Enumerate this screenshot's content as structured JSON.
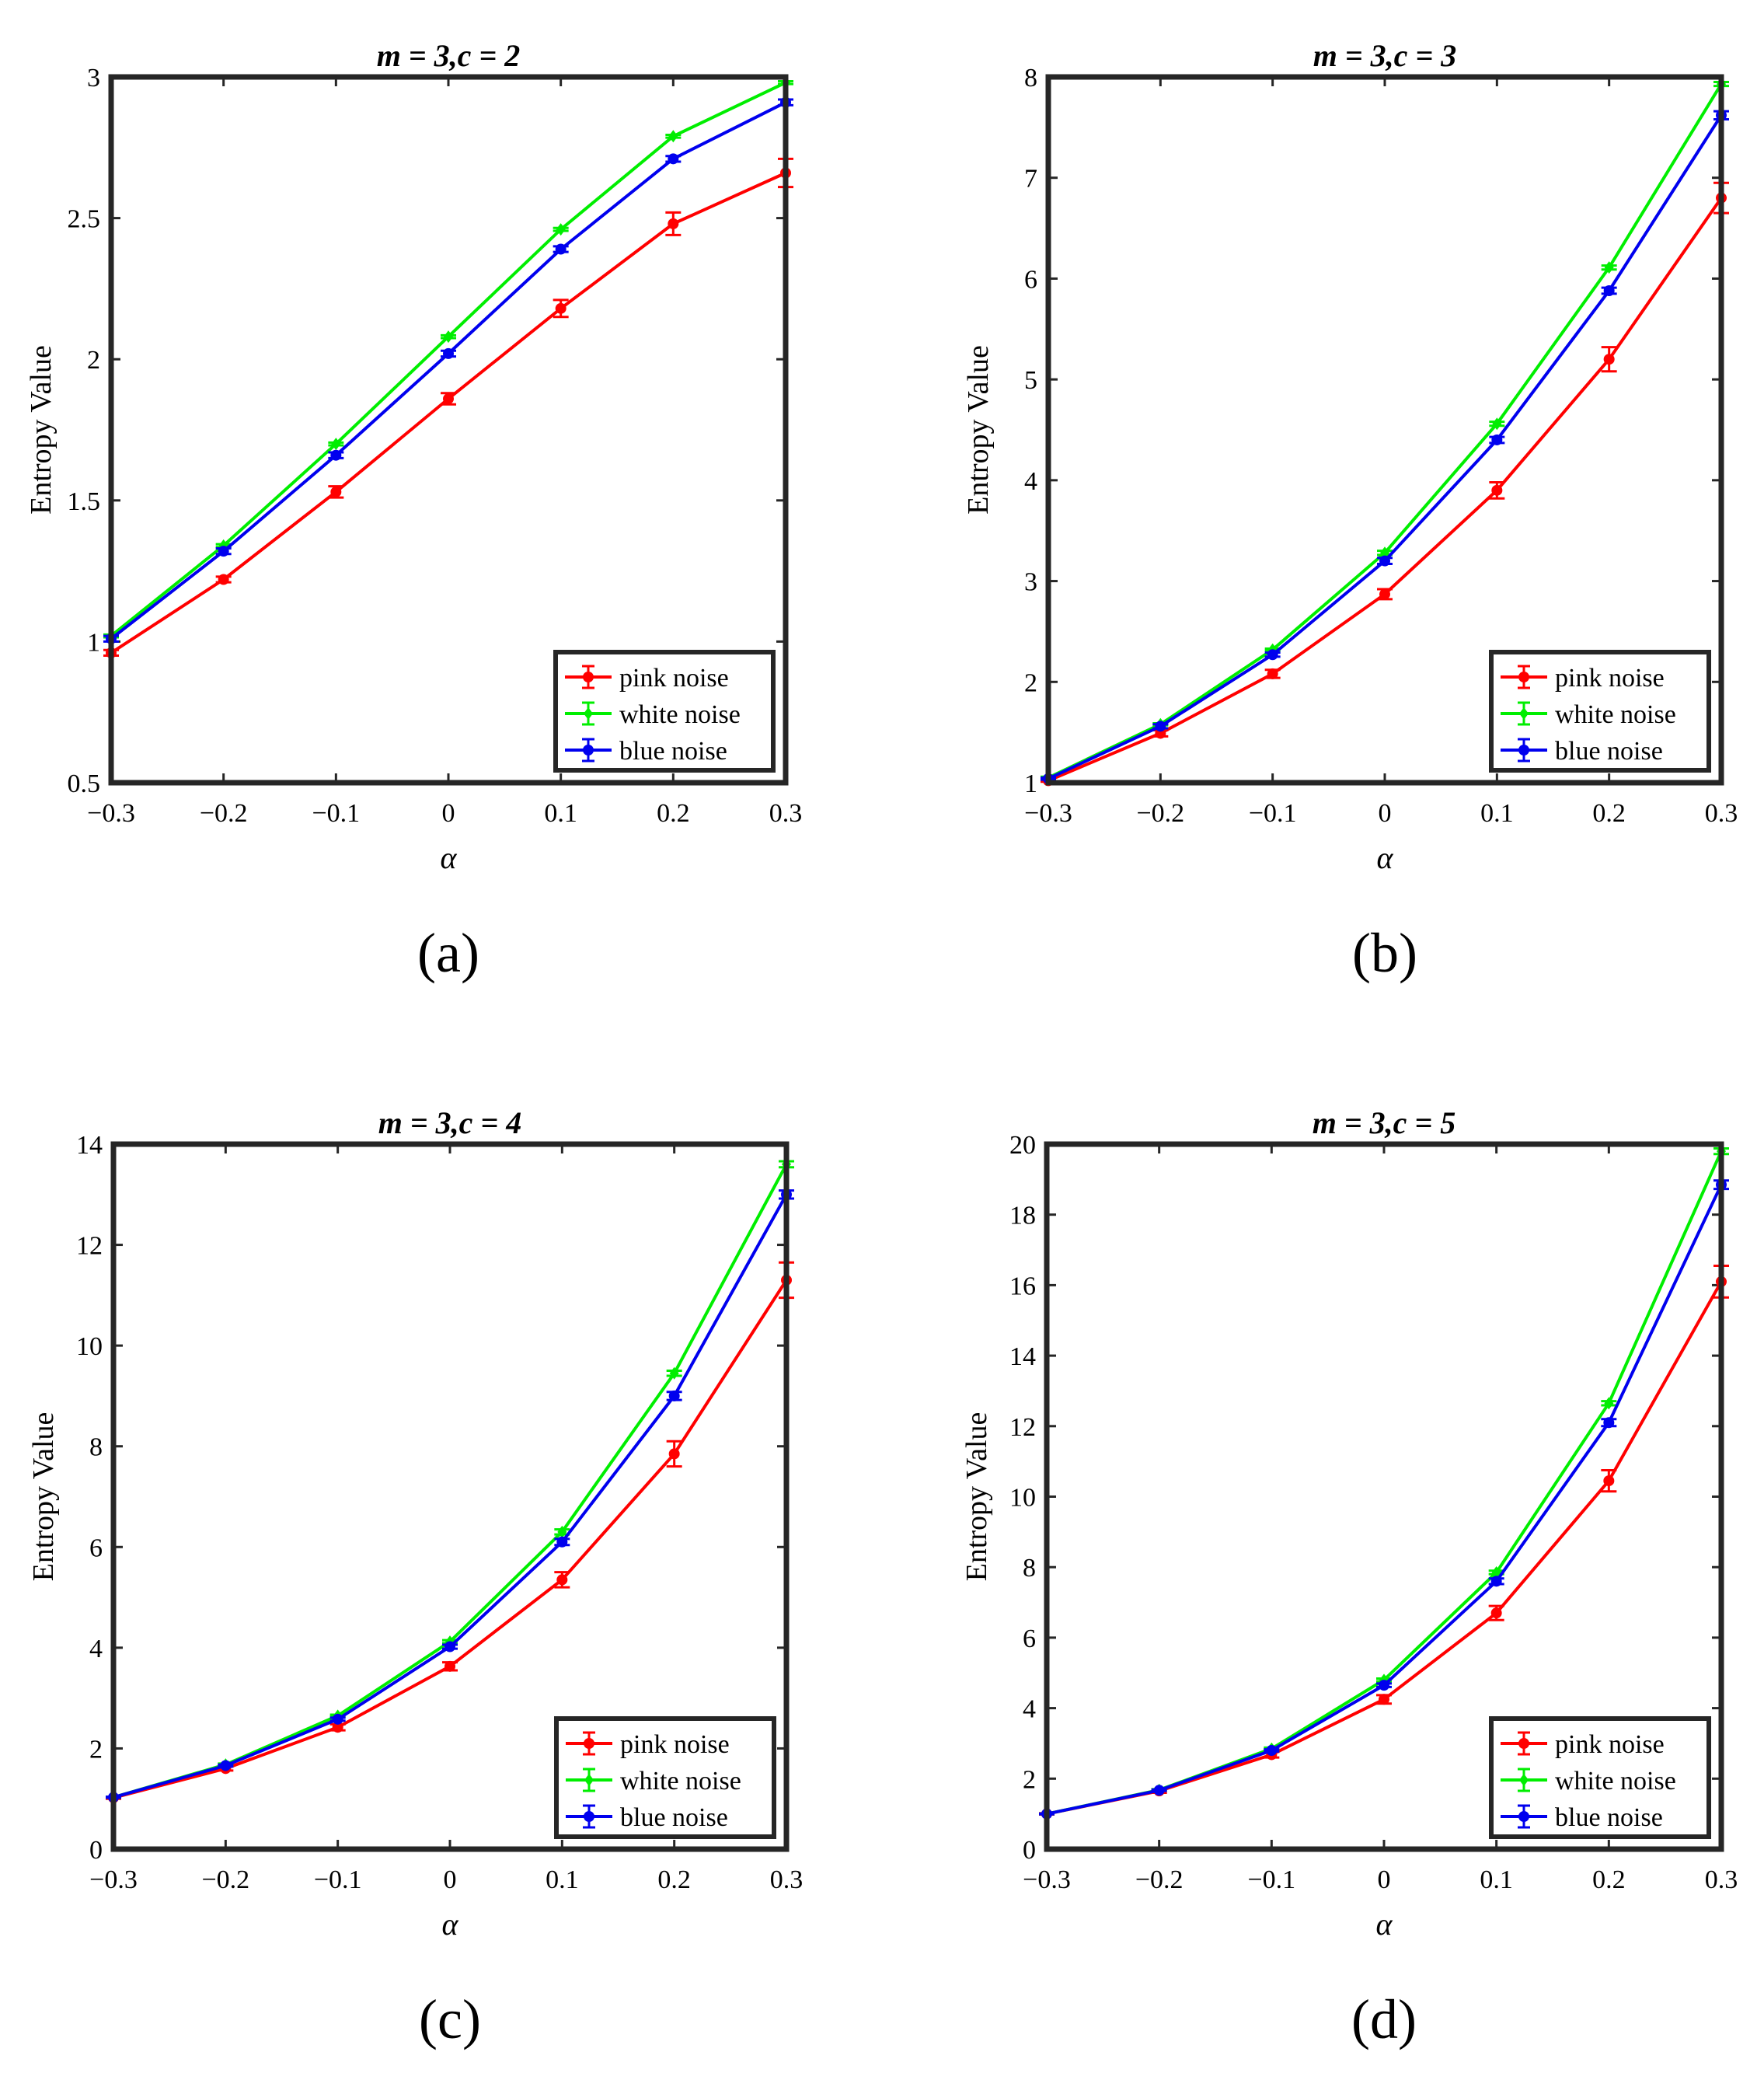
{
  "figure": {
    "colors": {
      "pink": "#ff0000",
      "white": "#00ee00",
      "blue": "#0000ee",
      "axis": "#262626"
    }
  },
  "chart_data": [
    {
      "panel": "(a)",
      "type": "line",
      "title_var1": "m",
      "title_val1": "3",
      "title_var2": "c",
      "title_val2": "2",
      "xlabel": "α",
      "ylabel": "Entropy Value",
      "x": [
        -0.3,
        -0.2,
        -0.1,
        0,
        0.1,
        0.2,
        0.3
      ],
      "xticks": [
        "−0.3",
        "−0.2",
        "−0.1",
        "0",
        "0.1",
        "0.2",
        "0.3"
      ],
      "yticks": [
        "0.5",
        "1",
        "1.5",
        "2",
        "2.5",
        "3"
      ],
      "ytick_values": [
        0.5,
        1,
        1.5,
        2,
        2.5,
        3
      ],
      "xlim": [
        -0.3,
        0.3
      ],
      "ylim": [
        0.5,
        3
      ],
      "legend_position": "bottom-right",
      "series": [
        {
          "name": "pink noise",
          "color": "#ff0000",
          "marker": "circle",
          "values": [
            0.96,
            1.22,
            1.53,
            1.86,
            2.18,
            2.48,
            2.66
          ],
          "errors": [
            0.01,
            0.01,
            0.02,
            0.02,
            0.03,
            0.04,
            0.05
          ]
        },
        {
          "name": "white noise",
          "color": "#00ee00",
          "marker": "diamond",
          "values": [
            1.02,
            1.34,
            1.7,
            2.08,
            2.46,
            2.79,
            2.98
          ],
          "errors": [
            0.005,
            0.005,
            0.005,
            0.005,
            0.005,
            0.005,
            0.005
          ]
        },
        {
          "name": "blue noise",
          "color": "#0000ee",
          "marker": "circle",
          "values": [
            1.01,
            1.32,
            1.66,
            2.02,
            2.39,
            2.71,
            2.91
          ],
          "errors": [
            0.01,
            0.01,
            0.01,
            0.01,
            0.01,
            0.01,
            0.01
          ]
        }
      ]
    },
    {
      "panel": "(b)",
      "type": "line",
      "title_var1": "m",
      "title_val1": "3",
      "title_var2": "c",
      "title_val2": "3",
      "xlabel": "α",
      "ylabel": "Entropy Value",
      "x": [
        -0.3,
        -0.2,
        -0.1,
        0,
        0.1,
        0.2,
        0.3
      ],
      "xticks": [
        "−0.3",
        "−0.2",
        "−0.1",
        "0",
        "0.1",
        "0.2",
        "0.3"
      ],
      "yticks": [
        "1",
        "2",
        "3",
        "4",
        "5",
        "6",
        "7",
        "8"
      ],
      "ytick_values": [
        1,
        2,
        3,
        4,
        5,
        6,
        7,
        8
      ],
      "xlim": [
        -0.3,
        0.3
      ],
      "ylim": [
        1,
        8
      ],
      "legend_position": "bottom-right",
      "series": [
        {
          "name": "pink noise",
          "color": "#ff0000",
          "marker": "circle",
          "values": [
            1.02,
            1.49,
            2.08,
            2.87,
            3.9,
            5.2,
            6.8
          ],
          "errors": [
            0.01,
            0.03,
            0.04,
            0.05,
            0.08,
            0.12,
            0.15
          ]
        },
        {
          "name": "white noise",
          "color": "#00ee00",
          "marker": "diamond",
          "values": [
            1.05,
            1.58,
            2.32,
            3.28,
            4.56,
            6.11,
            7.93
          ],
          "errors": [
            0.01,
            0.01,
            0.01,
            0.02,
            0.02,
            0.02,
            0.02
          ]
        },
        {
          "name": "blue noise",
          "color": "#0000ee",
          "marker": "circle",
          "values": [
            1.04,
            1.56,
            2.27,
            3.2,
            4.4,
            5.88,
            7.62
          ],
          "errors": [
            0.01,
            0.02,
            0.02,
            0.03,
            0.03,
            0.03,
            0.04
          ]
        }
      ]
    },
    {
      "panel": "(c)",
      "type": "line",
      "title_var1": "m",
      "title_val1": "3",
      "title_var2": "c",
      "title_val2": "4",
      "xlabel": "α",
      "ylabel": "Entropy Value",
      "x": [
        -0.3,
        -0.2,
        -0.1,
        0,
        0.1,
        0.2,
        0.3
      ],
      "xticks": [
        "−0.3",
        "−0.2",
        "−0.1",
        "0",
        "0.1",
        "0.2",
        "0.3"
      ],
      "yticks": [
        "0",
        "2",
        "4",
        "6",
        "8",
        "10",
        "12",
        "14"
      ],
      "ytick_values": [
        0,
        2,
        4,
        6,
        8,
        10,
        12,
        14
      ],
      "xlim": [
        -0.3,
        0.3
      ],
      "ylim": [
        0,
        14
      ],
      "legend_position": "bottom-right",
      "series": [
        {
          "name": "pink noise",
          "color": "#ff0000",
          "marker": "circle",
          "values": [
            1.02,
            1.6,
            2.42,
            3.63,
            5.35,
            7.85,
            11.3
          ],
          "errors": [
            0.02,
            0.04,
            0.06,
            0.08,
            0.15,
            0.25,
            0.35
          ]
        },
        {
          "name": "white noise",
          "color": "#00ee00",
          "marker": "diamond",
          "values": [
            1.03,
            1.68,
            2.65,
            4.12,
            6.3,
            9.45,
            13.6
          ],
          "errors": [
            0.01,
            0.02,
            0.02,
            0.03,
            0.05,
            0.05,
            0.06
          ]
        },
        {
          "name": "blue noise",
          "color": "#0000ee",
          "marker": "circle",
          "values": [
            1.03,
            1.66,
            2.58,
            4.02,
            6.1,
            9.0,
            13.0
          ],
          "errors": [
            0.01,
            0.02,
            0.03,
            0.04,
            0.06,
            0.08,
            0.08
          ]
        }
      ]
    },
    {
      "panel": "(d)",
      "type": "line",
      "title_var1": "m",
      "title_val1": "3",
      "title_var2": "c",
      "title_val2": "5",
      "xlabel": "α",
      "ylabel": "Entropy Value",
      "x": [
        -0.3,
        -0.2,
        -0.1,
        0,
        0.1,
        0.2,
        0.3
      ],
      "xticks": [
        "−0.3",
        "−0.2",
        "−0.1",
        "0",
        "0.1",
        "0.2",
        "0.3"
      ],
      "yticks": [
        "0",
        "2",
        "4",
        "6",
        "8",
        "10",
        "12",
        "14",
        "16",
        "18",
        "20"
      ],
      "ytick_values": [
        0,
        2,
        4,
        6,
        8,
        10,
        12,
        14,
        16,
        18,
        20
      ],
      "xlim": [
        -0.3,
        0.3
      ],
      "ylim": [
        0,
        20
      ],
      "legend_position": "bottom-right",
      "series": [
        {
          "name": "pink noise",
          "color": "#ff0000",
          "marker": "circle",
          "values": [
            1.0,
            1.65,
            2.68,
            4.25,
            6.7,
            10.45,
            16.1
          ],
          "errors": [
            0.02,
            0.05,
            0.08,
            0.12,
            0.2,
            0.3,
            0.45
          ]
        },
        {
          "name": "white noise",
          "color": "#00ee00",
          "marker": "diamond",
          "values": [
            1.0,
            1.68,
            2.85,
            4.8,
            7.85,
            12.65,
            19.8
          ],
          "errors": [
            0.01,
            0.02,
            0.03,
            0.04,
            0.05,
            0.06,
            0.08
          ]
        },
        {
          "name": "blue noise",
          "color": "#0000ee",
          "marker": "circle",
          "values": [
            1.0,
            1.67,
            2.8,
            4.65,
            7.6,
            12.1,
            18.85
          ],
          "errors": [
            0.01,
            0.02,
            0.03,
            0.05,
            0.08,
            0.1,
            0.12
          ]
        }
      ]
    }
  ]
}
